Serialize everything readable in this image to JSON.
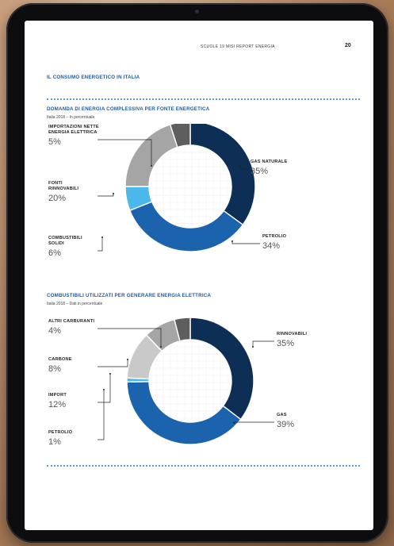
{
  "page": {
    "running_header": "SCUOLE 19 MISI REPORT ENERGIA",
    "page_number": "20",
    "section_title": "IL CONSUMO ENERGETICO IN ITALIA"
  },
  "colors": {
    "navy": "#0d2f56",
    "blue": "#1b63ad",
    "light_blue": "#4bb8ec",
    "light_gray": "#c9c9c9",
    "gray": "#a5a5a5",
    "dark_gray": "#5e5e5e",
    "accent_title": "#1e5a9e"
  },
  "chart_data": [
    {
      "type": "pie",
      "title": "DOMANDA DI ENERGIA COMPLESSIVA PER FONTE ENERGETICA",
      "subtitle": "Italia 2018 – In percentuale",
      "slices": [
        {
          "label_lines": [
            "GAS NATURALE"
          ],
          "value": 35,
          "label": "35%",
          "color": "#0d2f56"
        },
        {
          "label_lines": [
            "PETROLIO"
          ],
          "value": 34,
          "label": "34%",
          "color": "#1b63ad"
        },
        {
          "label_lines": [
            "COMBUSTIBILI",
            "SOLIDI"
          ],
          "value": 6,
          "label": "6%",
          "color": "#4bb8ec"
        },
        {
          "label_lines": [
            "FONTI",
            "RINNOVABILI"
          ],
          "value": 20,
          "label": "20%",
          "color": "#a5a5a5"
        },
        {
          "label_lines": [
            "IMPORTAZIONI NETTE",
            "ENERGIA ELETTRICA"
          ],
          "value": 5,
          "label": "5%",
          "color": "#5e5e5e"
        }
      ]
    },
    {
      "type": "pie",
      "title": "COMBUSTIBILI UTILIZZATI PER GENERARE ENERGIA ELETTRICA",
      "subtitle": "Italia 2018 – Dati in percentuale",
      "slices": [
        {
          "label_lines": [
            "RINNOVABILI"
          ],
          "value": 35,
          "label": "35%",
          "color": "#0d2f56"
        },
        {
          "label_lines": [
            "GAS"
          ],
          "value": 39,
          "label": "39%",
          "color": "#1b63ad"
        },
        {
          "label_lines": [
            "PETROLIO"
          ],
          "value": 1,
          "label": "1%",
          "color": "#4bb8ec"
        },
        {
          "label_lines": [
            "IMPORT"
          ],
          "value": 12,
          "label": "12%",
          "color": "#c9c9c9"
        },
        {
          "label_lines": [
            "CARBONE"
          ],
          "value": 8,
          "label": "8%",
          "color": "#a5a5a5"
        },
        {
          "label_lines": [
            "ALTRI CARBURANTI"
          ],
          "value": 4,
          "label": "4%",
          "color": "#5e5e5e"
        }
      ]
    }
  ]
}
